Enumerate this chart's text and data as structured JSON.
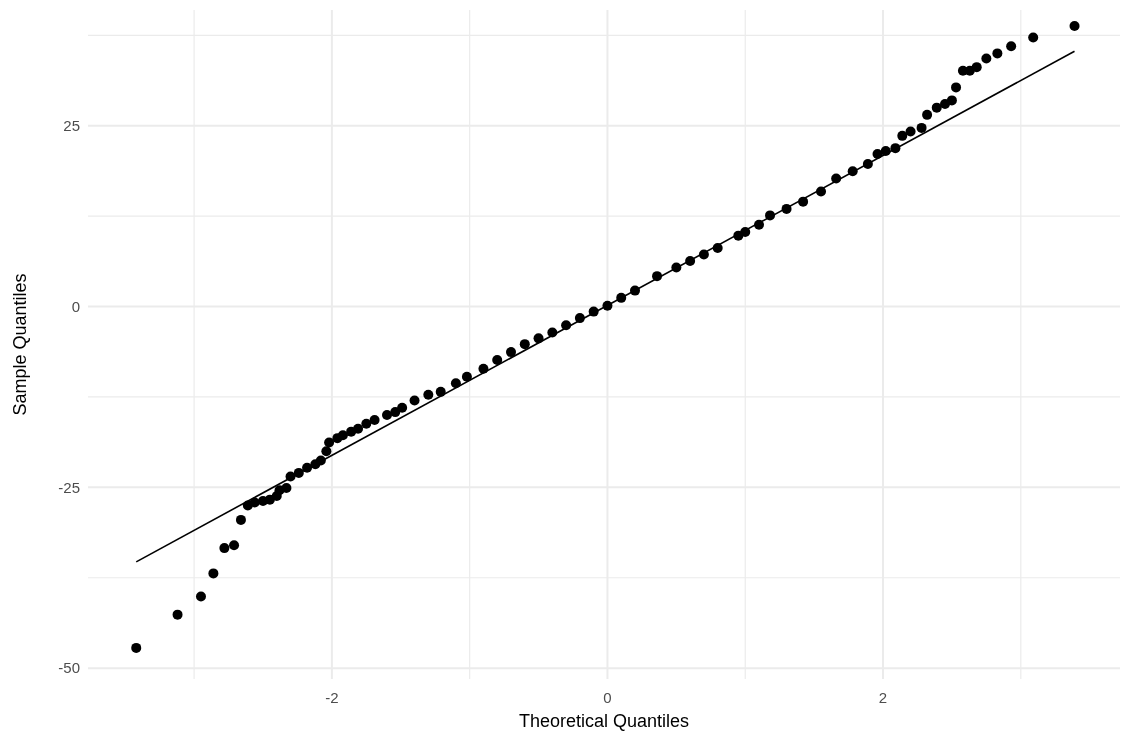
{
  "chart_data": {
    "type": "scatter",
    "xlabel": "Theoretical Quantiles",
    "ylabel": "Sample Quantiles",
    "xlim": [
      -3.77,
      3.72
    ],
    "ylim": [
      -51.5,
      41
    ],
    "xticks": [
      {
        "value": -3,
        "label": null
      },
      -2,
      {
        "value": -1,
        "label": null
      },
      0,
      {
        "value": 1,
        "label": null
      },
      2,
      {
        "value": 3,
        "label": null
      }
    ],
    "yticks": [
      -50,
      {
        "value": -37.5,
        "label": null
      },
      -25,
      {
        "value": -12.5,
        "label": null
      },
      0,
      {
        "value": 12.5,
        "label": null
      },
      25,
      {
        "value": 37.5,
        "label": null
      }
    ],
    "grid": true,
    "series": [
      {
        "marker": "circle",
        "color": "#000000",
        "x": [
          -3.42,
          -3.12,
          -2.95,
          -2.86,
          -2.78,
          -2.71,
          -2.66,
          -2.61,
          -2.56,
          -2.5,
          -2.45,
          -2.4,
          -2.38,
          -2.33,
          -2.3,
          -2.24,
          -2.18,
          -2.12,
          -2.08,
          -2.04,
          -2.02,
          -1.96,
          -1.92,
          -1.86,
          -1.81,
          -1.75,
          -1.69,
          -1.6,
          -1.54,
          -1.49,
          -1.4,
          -1.3,
          -1.21,
          -1.1,
          -1.02,
          -0.9,
          -0.8,
          -0.7,
          -0.6,
          -0.5,
          -0.4,
          -0.3,
          -0.2,
          -0.1,
          0,
          0.1,
          0.2,
          0.36,
          0.5,
          0.6,
          0.7,
          0.8,
          0.95,
          1.0,
          1.1,
          1.18,
          1.3,
          1.42,
          1.55,
          1.66,
          1.78,
          1.89,
          1.96,
          2.02,
          2.09,
          2.14,
          2.2,
          2.28,
          2.32,
          2.39,
          2.45,
          2.5,
          2.53,
          2.58,
          2.63,
          2.68,
          2.75,
          2.83,
          2.93,
          3.09,
          3.39
        ],
        "values": [
          -47.2,
          -42.6,
          -40.1,
          -36.9,
          -33.4,
          -33.0,
          -29.5,
          -27.5,
          -27.1,
          -26.9,
          -26.7,
          -26.2,
          -25.4,
          -25.1,
          -23.5,
          -23.0,
          -22.3,
          -21.8,
          -21.3,
          -20.0,
          -18.8,
          -18.2,
          -17.8,
          -17.3,
          -16.9,
          -16.2,
          -15.7,
          -15.0,
          -14.6,
          -14.0,
          -13.0,
          -12.2,
          -11.8,
          -10.6,
          -9.7,
          -8.6,
          -7.4,
          -6.3,
          -5.2,
          -4.4,
          -3.6,
          -2.6,
          -1.6,
          -0.7,
          0.1,
          1.2,
          2.2,
          4.2,
          5.4,
          6.3,
          7.2,
          8.1,
          9.8,
          10.3,
          11.3,
          12.6,
          13.5,
          14.5,
          15.9,
          17.7,
          18.7,
          19.7,
          21.1,
          21.5,
          21.9,
          23.6,
          24.2,
          24.7,
          26.5,
          27.5,
          28.0,
          28.5,
          30.3,
          32.6,
          32.6,
          33.1,
          34.3,
          35.0,
          36.0,
          37.2,
          38.8
        ]
      },
      {
        "type": "line",
        "color": "#000000",
        "x": [
          -3.42,
          3.39
        ],
        "values": [
          -35.3,
          35.3
        ]
      }
    ]
  }
}
